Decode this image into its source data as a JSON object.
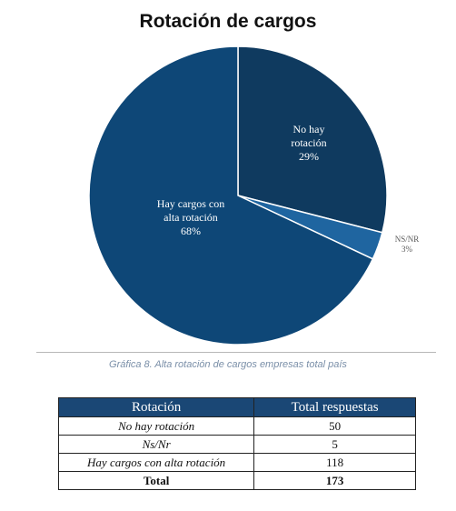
{
  "chart_data": {
    "type": "pie",
    "title": "Rotación de cargos",
    "slices": [
      {
        "label_lines": [
          "No hay",
          "rotación",
          "29%"
        ],
        "value": 29,
        "color": "#0f3a5f"
      },
      {
        "label_lines": [
          "NS/NR",
          "3%"
        ],
        "value": 3,
        "color": "#1f65a0"
      },
      {
        "label_lines": [
          "Hay cargos con",
          "alta rotación",
          "68%"
        ],
        "value": 68,
        "color": "#0e4777"
      }
    ],
    "start_angle_deg": 0,
    "direction": "clockwise"
  },
  "caption": "Gráfica 8. Alta rotación de cargos empresas total país",
  "table": {
    "headers": [
      "Rotación",
      "Total respuestas"
    ],
    "rows": [
      [
        "No hay rotación",
        "50"
      ],
      [
        "Ns/Nr",
        "5"
      ],
      [
        "Hay cargos con alta rotación",
        "118"
      ]
    ],
    "total": [
      "Total",
      "173"
    ]
  }
}
